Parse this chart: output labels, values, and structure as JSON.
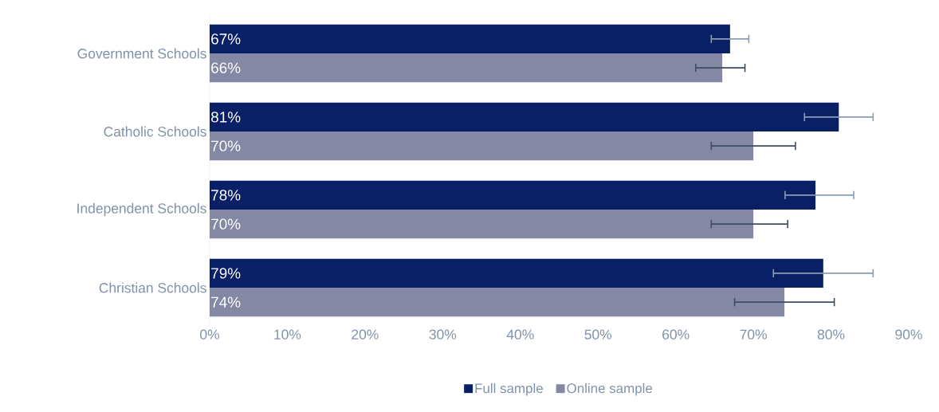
{
  "chart_data": {
    "type": "bar",
    "orientation": "horizontal",
    "categories": [
      "Government Schools",
      "Catholic Schools",
      "Independent Schools",
      "Christian Schools"
    ],
    "series": [
      {
        "name": "Full sample",
        "color": "#0a2066",
        "values": [
          67,
          81,
          78,
          79
        ],
        "value_labels": [
          "67%",
          "81%",
          "78%",
          "79%"
        ],
        "errors": [
          [
            64.5,
            69.5
          ],
          [
            76.5,
            85.5
          ],
          [
            74,
            83
          ],
          [
            72.5,
            85.5
          ]
        ]
      },
      {
        "name": "Online sample",
        "color": "#8588a4",
        "values": [
          66,
          70,
          70,
          74
        ],
        "value_labels": [
          "66%",
          "70%",
          "70%",
          "74%"
        ],
        "errors": [
          [
            62.5,
            69
          ],
          [
            64.5,
            75.5
          ],
          [
            64.5,
            74.5
          ],
          [
            67.5,
            80.5
          ]
        ]
      }
    ],
    "xlim": [
      0,
      90
    ],
    "xticks": [
      {
        "value": 0,
        "label": "0%"
      },
      {
        "value": 10,
        "label": "10%"
      },
      {
        "value": 20,
        "label": "20%"
      },
      {
        "value": 30,
        "label": "30%"
      },
      {
        "value": 40,
        "label": "40%"
      },
      {
        "value": 50,
        "label": "50%"
      },
      {
        "value": 60,
        "label": "60%"
      },
      {
        "value": 70,
        "label": "70%"
      },
      {
        "value": 80,
        "label": "80%"
      },
      {
        "value": 90,
        "label": "90%"
      }
    ],
    "grid": false,
    "legend": "bottom"
  }
}
